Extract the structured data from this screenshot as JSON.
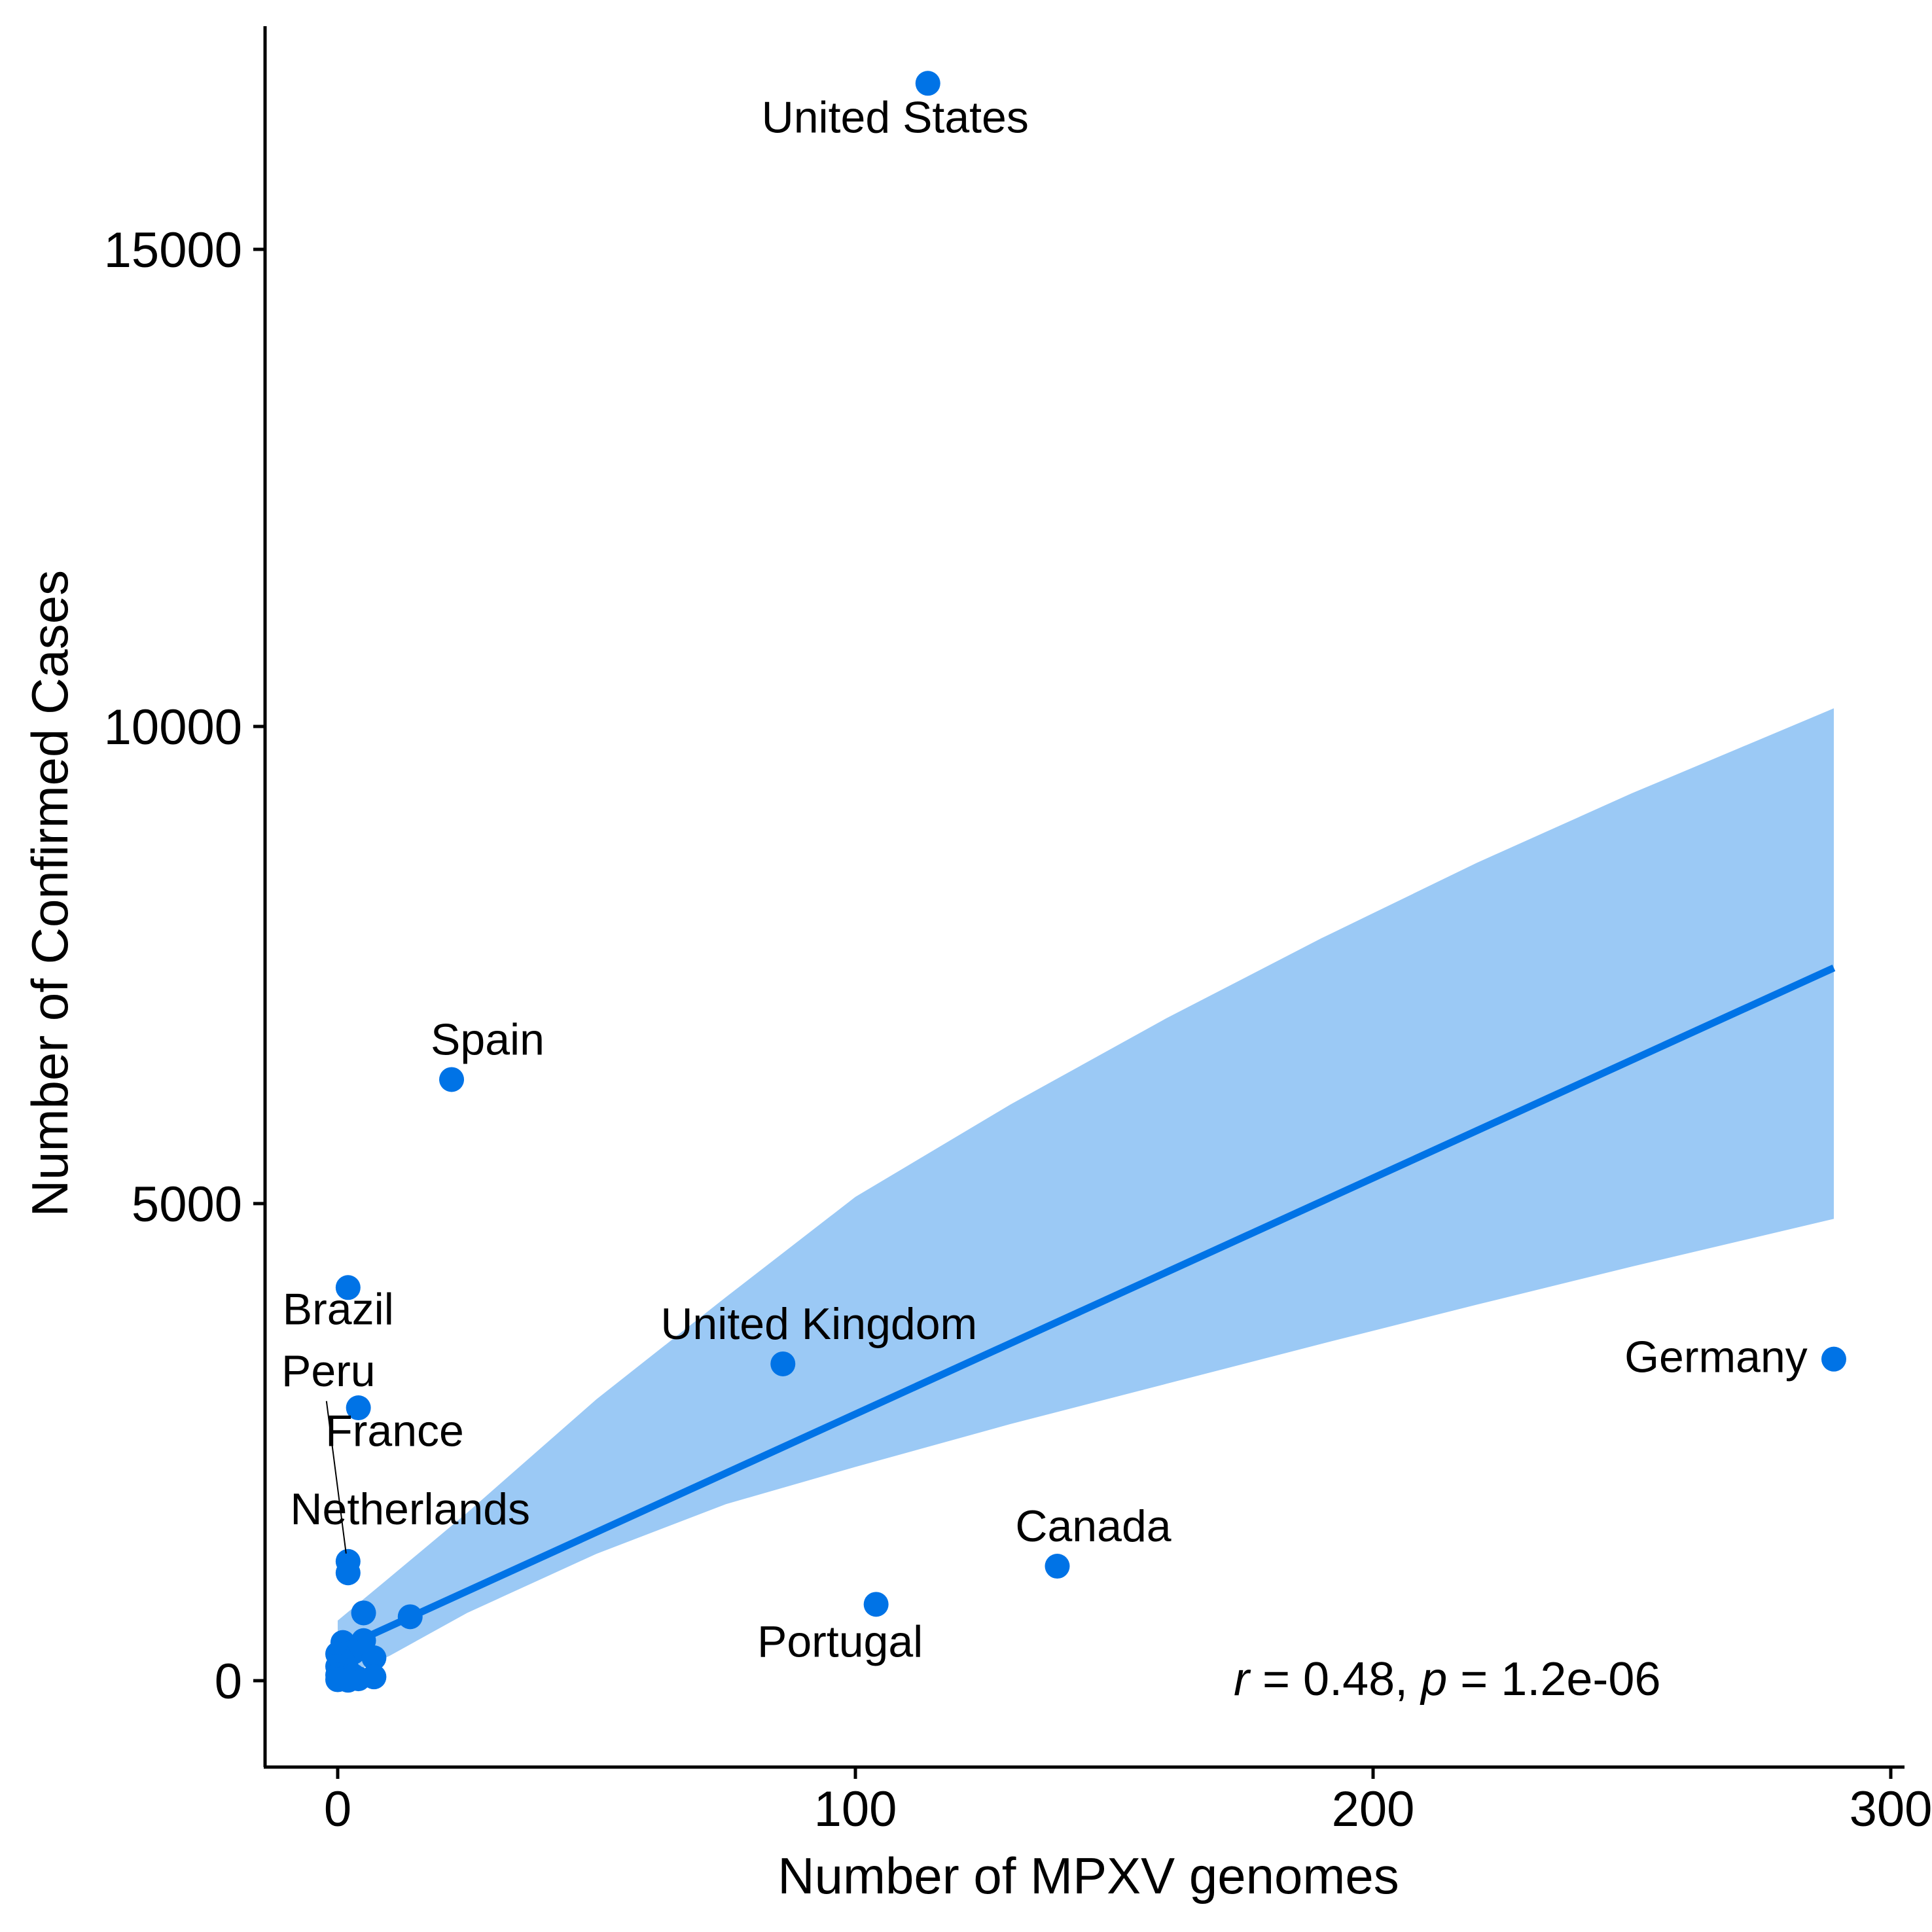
{
  "chart_data": {
    "type": "scatter",
    "title": "",
    "xlabel": "Number of MPXV genomes",
    "ylabel": "Number of Confirmed Cases",
    "xlim": [
      -14,
      300
    ],
    "ylim": [
      -900,
      17600
    ],
    "x_ticks": [
      0,
      100,
      200,
      300
    ],
    "y_ticks": [
      0,
      5000,
      10000,
      15000
    ],
    "x_tick_labels": [
      "0",
      "100",
      "200",
      "300"
    ],
    "y_tick_labels": [
      "0",
      "5000",
      "10000",
      "15000"
    ],
    "grid": false,
    "legend": "none",
    "colors": {
      "points": "#0073E6",
      "fit_line": "#0073E6",
      "confidence_band": "#9BC9F5"
    },
    "stat_annotation": {
      "r_symbol": "r",
      "r_text": " = 0.48, ",
      "p_symbol": "p",
      "p_text": " = 1.2e-06"
    },
    "points": [
      {
        "x": 114,
        "y": 16740,
        "label": "United States"
      },
      {
        "x": 22,
        "y": 6300,
        "label": "Spain"
      },
      {
        "x": 2,
        "y": 4120,
        "label": "Brazil"
      },
      {
        "x": 86,
        "y": 3320,
        "label": "United Kingdom"
      },
      {
        "x": 289,
        "y": 3370,
        "label": "Germany"
      },
      {
        "x": 4,
        "y": 2860,
        "label": ""
      },
      {
        "x": 2,
        "y": 1250,
        "label": "Peru"
      },
      {
        "x": 2,
        "y": 1130,
        "label": ""
      },
      {
        "x": 139,
        "y": 1200,
        "label": "Canada"
      },
      {
        "x": 104,
        "y": 800,
        "label": "Portugal"
      },
      {
        "x": 14,
        "y": 670,
        "label": ""
      },
      {
        "x": 5,
        "y": 710,
        "label": ""
      },
      {
        "x": 5,
        "y": 420,
        "label": ""
      },
      {
        "x": 1,
        "y": 400,
        "label": ""
      },
      {
        "x": 3,
        "y": 300,
        "label": ""
      },
      {
        "x": 0,
        "y": 280,
        "label": ""
      },
      {
        "x": 7,
        "y": 240,
        "label": ""
      },
      {
        "x": 1,
        "y": 200,
        "label": ""
      },
      {
        "x": 0,
        "y": 150,
        "label": ""
      },
      {
        "x": 2,
        "y": 100,
        "label": ""
      },
      {
        "x": 0,
        "y": 60,
        "label": ""
      },
      {
        "x": 3,
        "y": 50,
        "label": ""
      },
      {
        "x": 7,
        "y": 40,
        "label": ""
      },
      {
        "x": 1,
        "y": 20,
        "label": ""
      },
      {
        "x": 0,
        "y": 10,
        "label": ""
      },
      {
        "x": 4,
        "y": 20,
        "label": ""
      },
      {
        "x": 2,
        "y": 5,
        "label": ""
      }
    ],
    "text_labels": [
      {
        "text": "France",
        "x": 11,
        "y": 2460
      },
      {
        "text": "Netherlands",
        "x": 14,
        "y": 1640
      }
    ],
    "fit_line": {
      "x": [
        0,
        289
      ],
      "y": [
        320,
        7470
      ]
    },
    "confidence_band": {
      "x": [
        0,
        10,
        25,
        50,
        75,
        100,
        130,
        160,
        190,
        220,
        250,
        289
      ],
      "upper": [
        630,
        1080,
        1760,
        2950,
        4020,
        5070,
        6040,
        6940,
        7780,
        8570,
        9300,
        10190
      ],
      "lower": [
        10,
        260,
        710,
        1330,
        1850,
        2240,
        2690,
        3110,
        3530,
        3940,
        4340,
        4840
      ]
    }
  }
}
